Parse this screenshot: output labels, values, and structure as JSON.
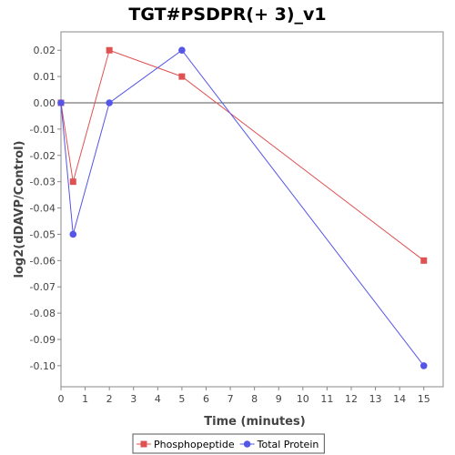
{
  "chart_data": {
    "type": "line",
    "title": "TGT#PSDPR(+ 3)_v1",
    "xlabel": "Time (minutes)",
    "ylabel": "log2(dDAVP/Control)",
    "xlim": [
      0,
      15.8
    ],
    "ylim": [
      -0.108,
      0.027
    ],
    "x_ticks": [
      0,
      1,
      2,
      3,
      4,
      5,
      6,
      7,
      8,
      9,
      10,
      11,
      12,
      13,
      14,
      15
    ],
    "y_ticks": [
      0.02,
      0.01,
      0.0,
      -0.01,
      -0.02,
      -0.03,
      -0.04,
      -0.05,
      -0.06,
      -0.07,
      -0.08,
      -0.09,
      -0.1
    ],
    "y_tick_labels": [
      "0.02",
      "0.01",
      "0.00",
      "-0.01",
      "-0.02",
      "-0.03",
      "-0.04",
      "-0.05",
      "-0.06",
      "-0.07",
      "-0.08",
      "-0.09",
      "-0.10"
    ],
    "grid": false,
    "zero_line": true,
    "legend_position": "bottom",
    "series": [
      {
        "name": "Phosphopeptide",
        "color": "#e05252",
        "marker": "square",
        "x": [
          0,
          0.5,
          2,
          5,
          15
        ],
        "y": [
          0.0,
          -0.03,
          0.02,
          0.01,
          -0.06
        ]
      },
      {
        "name": "Total Protein",
        "color": "#5555e8",
        "marker": "circle",
        "x": [
          0,
          0.5,
          2,
          5,
          15
        ],
        "y": [
          0.0,
          -0.05,
          0.0,
          0.02,
          -0.1
        ]
      }
    ]
  }
}
